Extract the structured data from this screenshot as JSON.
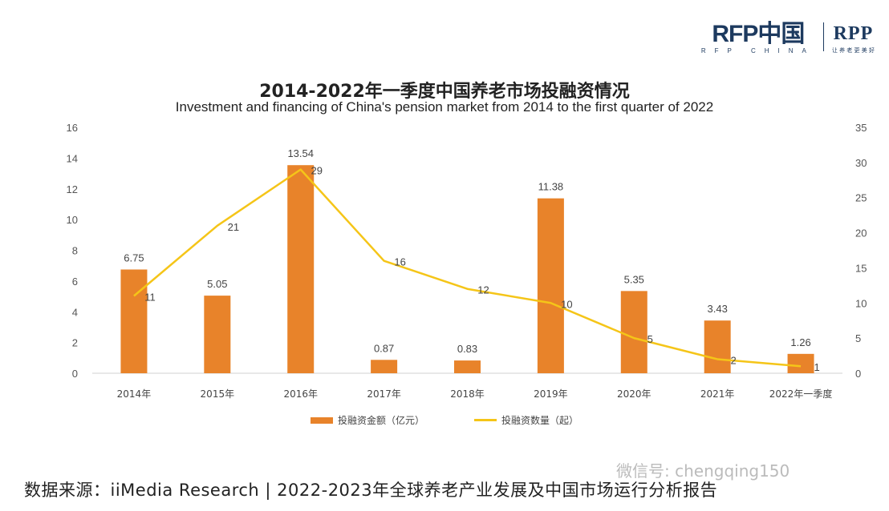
{
  "logo": {
    "main": "RFP中国",
    "main_sub": "RFP CHINA",
    "rpp": "RPP",
    "rpp_sub": "让 养 老 更 美 好"
  },
  "colors": {
    "bar": "#e8832a",
    "line": "#f5c518"
  },
  "chart_data": {
    "type": "bar",
    "title": "2014-2022年一季度中国养老市场投融资情况",
    "subtitle": "Investment and financing of China's pension market from 2014 to the first quarter of 2022",
    "categories": [
      "2014年",
      "2015年",
      "2016年",
      "2017年",
      "2018年",
      "2019年",
      "2020年",
      "2021年",
      "2022年一季度"
    ],
    "series": [
      {
        "name": "投融资金额（亿元）",
        "type": "bar",
        "axis": "left",
        "values": [
          6.75,
          5.05,
          13.54,
          0.87,
          0.83,
          11.38,
          5.35,
          3.43,
          1.26
        ],
        "labels": [
          "6.75",
          "5.05",
          "13.54",
          "0.87",
          "0.83",
          "11.38",
          "5.35",
          "3.43",
          "1.26"
        ]
      },
      {
        "name": "投融资数量（起）",
        "type": "line",
        "axis": "right",
        "values": [
          11,
          21,
          29,
          16,
          12,
          10,
          5,
          2,
          1
        ],
        "labels": [
          "11",
          "21",
          "29",
          "16",
          "12",
          "10",
          "5",
          "2",
          "1"
        ]
      }
    ],
    "yleft": {
      "min": 0,
      "max": 16,
      "ticks": [
        "0",
        "2",
        "4",
        "6",
        "8",
        "10",
        "12",
        "14",
        "16"
      ]
    },
    "yright": {
      "min": 0,
      "max": 35,
      "ticks": [
        "0",
        "5",
        "10",
        "15",
        "20",
        "25",
        "30",
        "35"
      ]
    },
    "grid": false,
    "legend_position": "bottom"
  },
  "legend": {
    "bar_label": "投融资金额（亿元）",
    "line_label": "投融资数量（起）"
  },
  "source": "数据来源：iiMedia Research | 2022-2023年全球养老产业发展及中国市场运行分析报告",
  "watermark": "微信号: chengqing150"
}
